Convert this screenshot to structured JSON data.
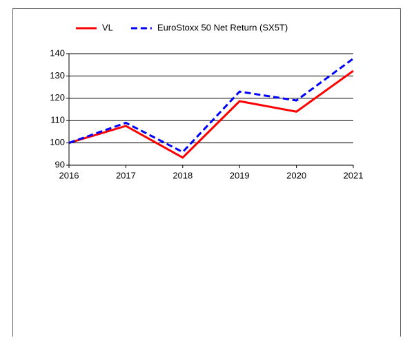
{
  "chart_data": {
    "type": "line",
    "categories": [
      "2016",
      "2017",
      "2018",
      "2019",
      "2020",
      "2021"
    ],
    "series": [
      {
        "name": "VL",
        "color": "#ff0000",
        "style": "solid",
        "values": [
          100,
          107.6,
          93.4,
          118.7,
          114,
          132.3
        ]
      },
      {
        "name": "EuroStoxx 50 Net Return (SX5T)",
        "color": "#0000ff",
        "style": "dashed",
        "values": [
          100,
          109,
          95.9,
          123,
          119,
          137.8
        ]
      }
    ],
    "ylim": [
      90,
      140
    ],
    "yticks": [
      90,
      100,
      110,
      120,
      130,
      140
    ],
    "grid": true,
    "legend": "top"
  }
}
